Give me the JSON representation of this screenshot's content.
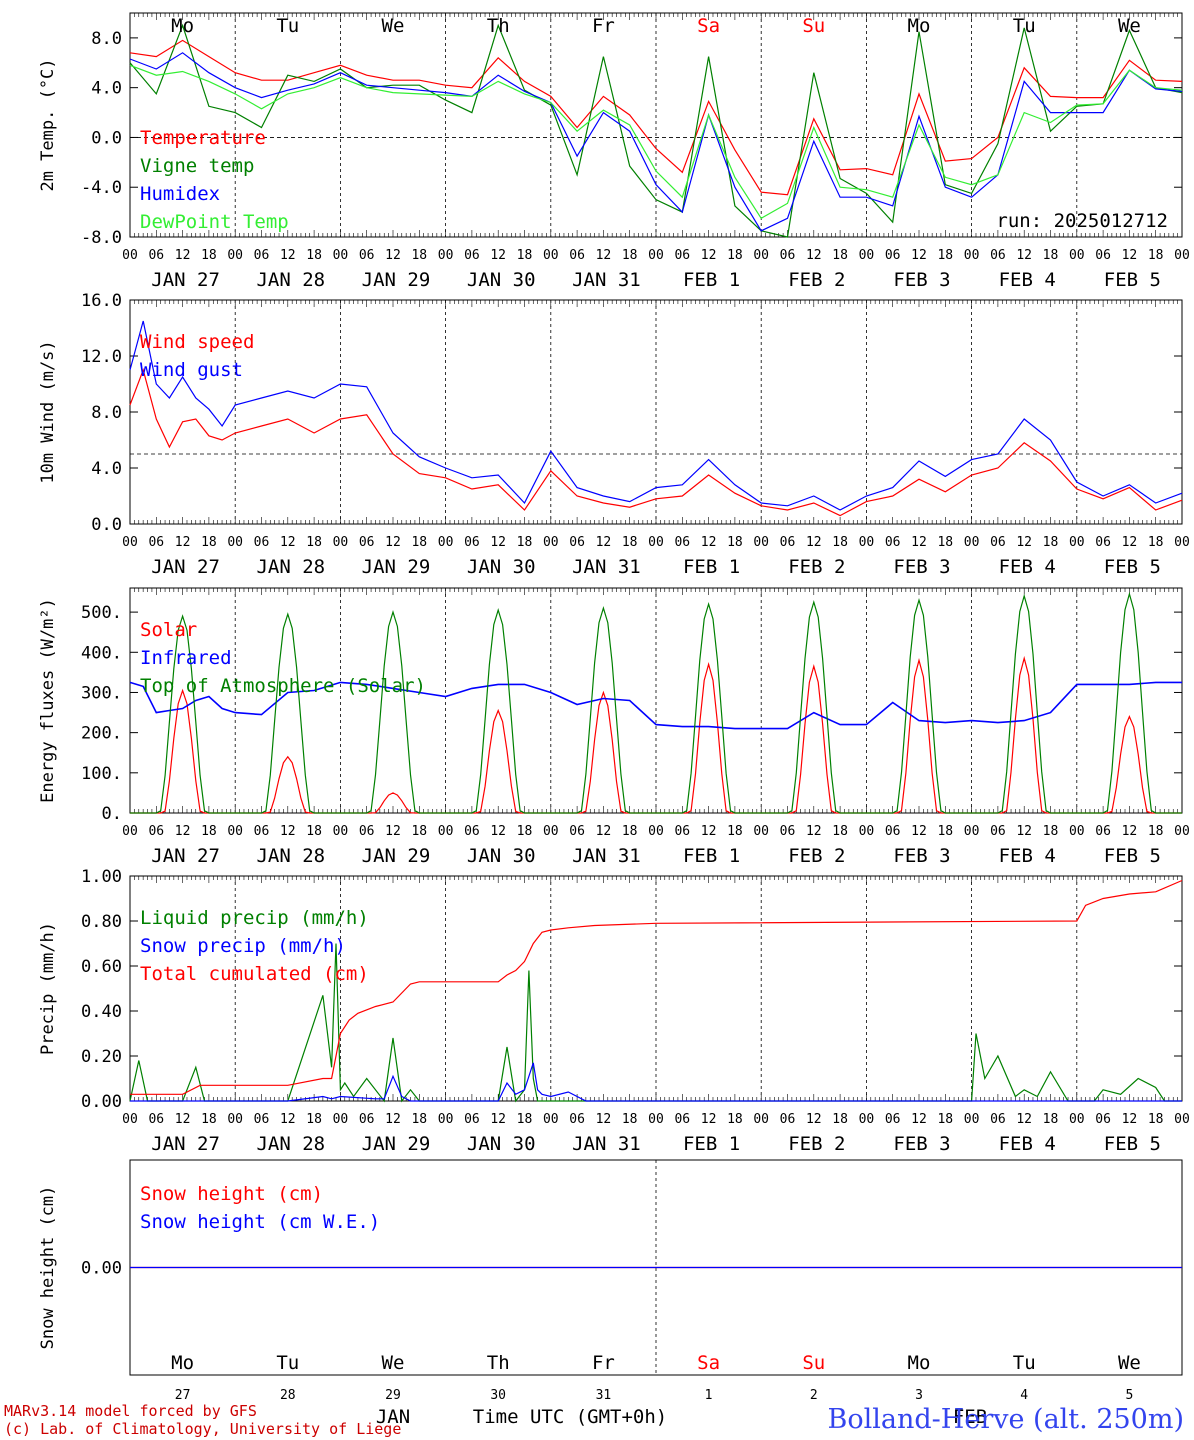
{
  "title": "Bolland-Herve (alt. 250m)",
  "credits": [
    "MARv3.14 model forced by GFS",
    "(c) Lab. of Climatology, University of Liege"
  ],
  "run_label": "run: 2025012712",
  "x_axis": {
    "hour_ticks": [
      "00",
      "06",
      "12",
      "18"
    ],
    "day_labels": [
      "JAN 27",
      "JAN 28",
      "JAN 29",
      "JAN 30",
      "JAN 31",
      "FEB  1",
      "FEB  2",
      "FEB  3",
      "FEB  4",
      "FEB  5"
    ],
    "weekdays": [
      "Mo",
      "Tu",
      "We",
      "Th",
      "Fr",
      "Sa",
      "Su",
      "Mo",
      "Tu",
      "We"
    ],
    "weekend_indices": [
      5,
      6
    ],
    "bottom_day_numbers": [
      "27",
      "28",
      "29",
      "30",
      "31",
      "1",
      "2",
      "3",
      "4",
      "5"
    ],
    "bottom_month_labels": [
      "JAN",
      "FEB"
    ],
    "bottom_title": "Time UTC (GMT+0h)"
  },
  "colors": {
    "red": "#ff0000",
    "green": "#008000",
    "blue": "#0000ff",
    "lightgreen": "#33ee33",
    "weekend": "#ff0000",
    "title": "#3344ee",
    "credits": "#cc0000"
  },
  "chart_data": [
    {
      "type": "line",
      "ylabel": "2m Temp. (°C)",
      "ylim": [
        -8,
        10
      ],
      "yticks": [
        8,
        4,
        0,
        -4,
        -8
      ],
      "ytick_labels": [
        "8.0",
        "4.0",
        "0.0",
        "-4.0",
        "-8.0"
      ],
      "ref_line": 0,
      "x_unit": "hours since JAN 27 00 UTC",
      "series": [
        {
          "name": "Temperature",
          "color": "red",
          "x": [
            0,
            6,
            12,
            18,
            24,
            30,
            36,
            42,
            48,
            54,
            60,
            66,
            72,
            78,
            84,
            90,
            96,
            102,
            108,
            114,
            120,
            126,
            132,
            138,
            144,
            150,
            156,
            162,
            168,
            174,
            180,
            186,
            192,
            198,
            204,
            210,
            216,
            222,
            228,
            234,
            240
          ],
          "y": [
            6.8,
            6.5,
            7.8,
            6.5,
            5.2,
            4.6,
            4.6,
            5.2,
            5.8,
            5.0,
            4.6,
            4.6,
            4.2,
            4.0,
            6.4,
            4.5,
            3.3,
            0.8,
            3.3,
            1.8,
            -0.9,
            -2.8,
            2.9,
            -1.0,
            -4.4,
            -4.6,
            1.5,
            -2.6,
            -2.5,
            -3.0,
            3.5,
            -1.9,
            -1.7,
            0.0,
            5.6,
            3.3,
            3.2,
            3.2,
            6.2,
            4.6,
            4.5
          ]
        },
        {
          "name": "Vigne temp",
          "color": "green",
          "x": [
            0,
            6,
            12,
            18,
            24,
            30,
            36,
            42,
            48,
            54,
            60,
            66,
            72,
            78,
            84,
            90,
            96,
            102,
            108,
            114,
            120,
            126,
            132,
            138,
            144,
            150,
            156,
            162,
            168,
            174,
            180,
            186,
            192,
            198,
            204,
            210,
            216,
            222,
            228,
            234,
            240
          ],
          "y": [
            6.0,
            3.5,
            9.0,
            2.5,
            2.0,
            0.8,
            5.0,
            4.5,
            5.5,
            4.0,
            4.2,
            4.2,
            3.0,
            2.0,
            9.0,
            3.8,
            2.6,
            -3.0,
            6.5,
            -2.3,
            -5.0,
            -6.0,
            6.5,
            -5.5,
            -7.5,
            -8.0,
            5.2,
            -3.3,
            -4.5,
            -6.8,
            8.5,
            -3.8,
            -4.5,
            -0.5,
            8.8,
            0.5,
            2.5,
            2.7,
            8.6,
            4.0,
            3.6
          ]
        },
        {
          "name": "Humidex",
          "color": "blue",
          "x": [
            0,
            6,
            12,
            18,
            24,
            30,
            36,
            42,
            48,
            54,
            60,
            66,
            72,
            78,
            84,
            90,
            96,
            102,
            108,
            114,
            120,
            126,
            132,
            138,
            144,
            150,
            156,
            162,
            168,
            174,
            180,
            186,
            192,
            198,
            204,
            210,
            216,
            222,
            228,
            234,
            240
          ],
          "y": [
            6.3,
            5.5,
            6.8,
            5.2,
            4.0,
            3.2,
            3.8,
            4.3,
            5.2,
            4.2,
            4.0,
            3.8,
            3.6,
            3.3,
            5.0,
            3.7,
            2.8,
            -1.5,
            2.0,
            0.5,
            -3.8,
            -6.0,
            1.8,
            -4.0,
            -7.5,
            -6.5,
            -0.3,
            -4.8,
            -4.8,
            -5.5,
            1.7,
            -4.0,
            -4.8,
            -3.0,
            4.5,
            2.0,
            2.0,
            2.0,
            5.4,
            3.9,
            3.7
          ]
        },
        {
          "name": "DewPoint Temp",
          "color": "lightgreen",
          "x": [
            0,
            6,
            12,
            18,
            24,
            30,
            36,
            42,
            48,
            54,
            60,
            66,
            72,
            78,
            84,
            90,
            96,
            102,
            108,
            114,
            120,
            126,
            132,
            138,
            144,
            150,
            156,
            162,
            168,
            174,
            180,
            186,
            192,
            198,
            204,
            210,
            216,
            222,
            228,
            234,
            240
          ],
          "y": [
            5.8,
            5.0,
            5.3,
            4.5,
            3.5,
            2.3,
            3.5,
            4.0,
            4.8,
            4.0,
            3.6,
            3.5,
            3.4,
            3.3,
            4.5,
            3.5,
            2.8,
            0.5,
            2.2,
            1.0,
            -2.7,
            -4.8,
            1.8,
            -3.2,
            -6.5,
            -5.3,
            0.8,
            -4.0,
            -4.2,
            -4.8,
            1.0,
            -3.2,
            -3.8,
            -3.0,
            2.0,
            1.2,
            2.6,
            2.7,
            5.4,
            4.0,
            3.8
          ]
        }
      ]
    },
    {
      "type": "line",
      "ylabel": "10m Wind (m/s)",
      "ylim": [
        0,
        16
      ],
      "yticks": [
        0,
        4,
        8,
        12,
        16
      ],
      "ytick_labels": [
        "0.0",
        "4.0",
        "8.0",
        "12.0",
        "16.0"
      ],
      "ref_line": 5,
      "series": [
        {
          "name": "Wind speed",
          "color": "red",
          "x": [
            0,
            3,
            6,
            9,
            12,
            15,
            18,
            21,
            24,
            30,
            36,
            42,
            48,
            54,
            60,
            66,
            72,
            78,
            84,
            90,
            96,
            102,
            108,
            114,
            120,
            126,
            132,
            138,
            144,
            150,
            156,
            162,
            168,
            174,
            180,
            186,
            192,
            198,
            204,
            210,
            216,
            222,
            228,
            234,
            240
          ],
          "y": [
            8.5,
            11.0,
            7.5,
            5.5,
            7.3,
            7.5,
            6.3,
            6.0,
            6.5,
            7.0,
            7.5,
            6.5,
            7.5,
            7.8,
            5.0,
            3.6,
            3.3,
            2.5,
            2.8,
            1.0,
            3.8,
            2.0,
            1.5,
            1.2,
            1.8,
            2.0,
            3.5,
            2.2,
            1.3,
            1.0,
            1.5,
            0.6,
            1.6,
            2.0,
            3.2,
            2.3,
            3.5,
            4.0,
            5.8,
            4.5,
            2.5,
            1.8,
            2.6,
            1.0,
            1.7
          ]
        },
        {
          "name": "Wind gust",
          "color": "blue",
          "x": [
            0,
            3,
            6,
            9,
            12,
            15,
            18,
            21,
            24,
            30,
            36,
            42,
            48,
            54,
            60,
            66,
            72,
            78,
            84,
            90,
            96,
            102,
            108,
            114,
            120,
            126,
            132,
            138,
            144,
            150,
            156,
            162,
            168,
            174,
            180,
            186,
            192,
            198,
            204,
            210,
            216,
            222,
            228,
            234,
            240
          ],
          "y": [
            11.0,
            14.5,
            10.0,
            9.0,
            10.5,
            9.0,
            8.2,
            7.0,
            8.5,
            9.0,
            9.5,
            9.0,
            10.0,
            9.8,
            6.5,
            4.8,
            4.0,
            3.3,
            3.5,
            1.5,
            5.2,
            2.6,
            2.0,
            1.6,
            2.6,
            2.8,
            4.6,
            2.8,
            1.5,
            1.3,
            2.0,
            1.0,
            2.0,
            2.6,
            4.5,
            3.4,
            4.6,
            5.0,
            7.5,
            6.0,
            3.0,
            2.0,
            2.8,
            1.5,
            2.2
          ]
        }
      ]
    },
    {
      "type": "line",
      "ylabel": "Energy fluxes (W/m²)",
      "ylim": [
        0,
        560
      ],
      "yticks": [
        0,
        100,
        200,
        300,
        400,
        500
      ],
      "ytick_labels": [
        "0.",
        "100.",
        "200.",
        "300.",
        "400.",
        "500."
      ],
      "series": [
        {
          "name": "Solar",
          "color": "red",
          "day_peaks": [
            305,
            140,
            50,
            255,
            300,
            370,
            365,
            380,
            385,
            240
          ]
        },
        {
          "name": "Infrared",
          "color": "blue",
          "x": [
            0,
            3,
            6,
            9,
            12,
            15,
            18,
            21,
            24,
            30,
            36,
            42,
            48,
            54,
            60,
            66,
            72,
            78,
            84,
            90,
            96,
            102,
            108,
            114,
            120,
            126,
            132,
            138,
            144,
            150,
            156,
            162,
            168,
            174,
            180,
            186,
            192,
            198,
            204,
            210,
            216,
            222,
            228,
            234,
            240
          ],
          "y": [
            325,
            315,
            250,
            255,
            260,
            280,
            290,
            260,
            250,
            245,
            300,
            305,
            325,
            320,
            310,
            300,
            290,
            310,
            320,
            320,
            300,
            270,
            285,
            280,
            220,
            215,
            215,
            210,
            210,
            210,
            250,
            220,
            220,
            275,
            230,
            225,
            230,
            225,
            230,
            250,
            320,
            320,
            320,
            325,
            325
          ]
        },
        {
          "name": "Top of Atmosphere (Solar)",
          "color": "green",
          "day_peaks": [
            490,
            495,
            500,
            505,
            510,
            520,
            525,
            530,
            540,
            545
          ]
        }
      ]
    },
    {
      "type": "line",
      "ylabel": "Precip (mm/h)",
      "ylim": [
        0,
        1
      ],
      "yticks": [
        0,
        0.2,
        0.4,
        0.6,
        0.8,
        1.0
      ],
      "ytick_labels": [
        "0.00",
        "0.20",
        "0.40",
        "0.60",
        "0.80",
        "1.00"
      ],
      "series": [
        {
          "name": "Liquid precip (mm/h)",
          "color": "green",
          "x": [
            0,
            2,
            4,
            6,
            12,
            15,
            17,
            24,
            36,
            44,
            46,
            47,
            48,
            49,
            51,
            54,
            58,
            60,
            62,
            64,
            66,
            69,
            72,
            78,
            84,
            86,
            88,
            90,
            91,
            92,
            93,
            96,
            100,
            120,
            160,
            190,
            192,
            193,
            195,
            198,
            202,
            204,
            207,
            210,
            214,
            220,
            222,
            226,
            230,
            234,
            236,
            240
          ],
          "y": [
            0,
            0.18,
            0,
            0,
            0,
            0.15,
            0,
            0,
            0,
            0.47,
            0.15,
            0.7,
            0.05,
            0.08,
            0.02,
            0.1,
            0,
            0.28,
            0,
            0.05,
            0,
            0,
            0,
            0,
            0,
            0.24,
            0,
            0.05,
            0.58,
            0.1,
            0,
            0,
            0,
            0,
            0,
            0,
            0,
            0.3,
            0.1,
            0.2,
            0.02,
            0.05,
            0.02,
            0.13,
            0,
            0,
            0.05,
            0.03,
            0.1,
            0.06,
            0,
            0
          ]
        },
        {
          "name": "Snow precip (mm/h)",
          "color": "blue",
          "x": [
            0,
            36,
            44,
            46,
            48,
            56,
            58,
            60,
            62,
            64,
            80,
            84,
            86,
            88,
            90,
            92,
            93,
            94,
            96,
            100,
            104,
            120,
            240
          ],
          "y": [
            0,
            0,
            0.02,
            0.01,
            0.02,
            0.01,
            0.01,
            0.11,
            0.02,
            0,
            0,
            0,
            0.08,
            0.03,
            0.05,
            0.17,
            0.05,
            0.03,
            0.02,
            0.04,
            0,
            0,
            0
          ]
        },
        {
          "name": "Total cumulated (cm)",
          "color": "red",
          "x": [
            0,
            12,
            16,
            24,
            36,
            44,
            46,
            48,
            50,
            52,
            56,
            60,
            64,
            66,
            72,
            84,
            86,
            88,
            90,
            92,
            94,
            96,
            100,
            106,
            120,
            216,
            218,
            222,
            228,
            234,
            240
          ],
          "y": [
            0.03,
            0.03,
            0.07,
            0.07,
            0.07,
            0.1,
            0.1,
            0.3,
            0.36,
            0.39,
            0.42,
            0.44,
            0.52,
            0.53,
            0.53,
            0.53,
            0.56,
            0.58,
            0.62,
            0.7,
            0.75,
            0.76,
            0.77,
            0.78,
            0.79,
            0.8,
            0.87,
            0.9,
            0.92,
            0.93,
            0.98
          ]
        }
      ]
    },
    {
      "type": "line",
      "ylabel": "Snow height (cm)",
      "ylim": [
        -1,
        1
      ],
      "yticks": [
        0
      ],
      "ytick_labels": [
        "0.00"
      ],
      "series": [
        {
          "name": "Snow height (cm)",
          "color": "red",
          "x": [
            0,
            240
          ],
          "y": [
            0,
            0
          ]
        },
        {
          "name": "Snow height (cm W.E.)",
          "color": "blue",
          "x": [
            0,
            240
          ],
          "y": [
            0,
            0
          ]
        }
      ]
    }
  ]
}
